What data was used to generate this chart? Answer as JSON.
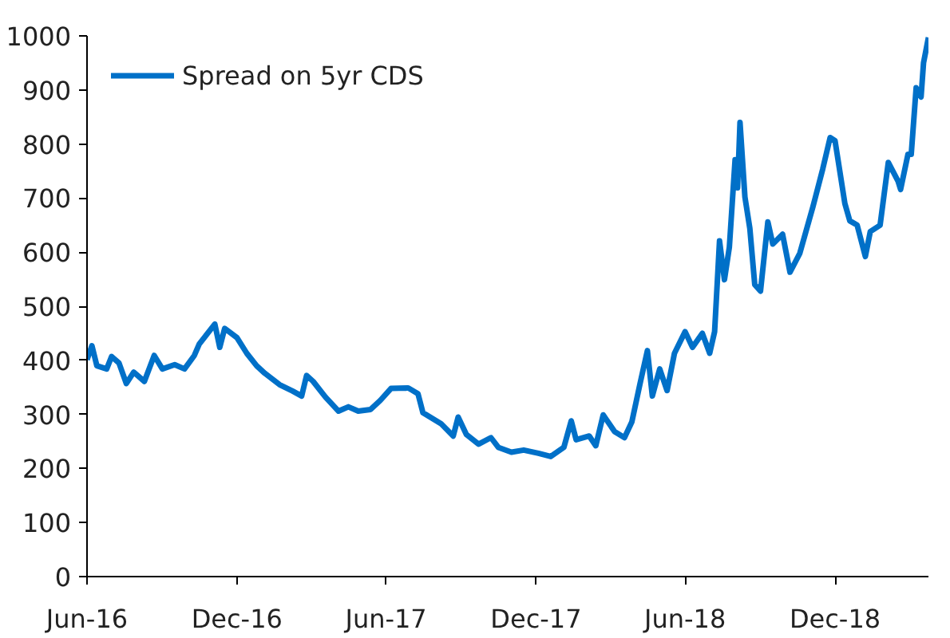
{
  "chart_data": {
    "type": "line",
    "legend": "top left",
    "grid": false,
    "line_style": "solid",
    "xlim": [
      "2016-06-01",
      "2019-03-25"
    ],
    "ylim": [
      0,
      1000
    ],
    "xticks": [
      {
        "value": "2016-06-01",
        "label": "Jun-16"
      },
      {
        "value": "2016-12-01",
        "label": "Dec-16"
      },
      {
        "value": "2017-06-01",
        "label": "Jun-17"
      },
      {
        "value": "2017-12-01",
        "label": "Dec-17"
      },
      {
        "value": "2018-06-01",
        "label": "Jun-18"
      },
      {
        "value": "2018-12-01",
        "label": "Dec-18"
      }
    ],
    "yticks": [
      0,
      100,
      200,
      300,
      400,
      500,
      600,
      700,
      800,
      900,
      1000
    ],
    "x": [
      "2016-06-01",
      "2016-06-07",
      "2016-06-13",
      "2016-06-25",
      "2016-07-01",
      "2016-07-10",
      "2016-07-19",
      "2016-07-28",
      "2016-08-10",
      "2016-08-22",
      "2016-09-01",
      "2016-09-16",
      "2016-09-28",
      "2016-10-10",
      "2016-10-16",
      "2016-11-04",
      "2016-11-10",
      "2016-11-16",
      "2016-12-01",
      "2016-12-13",
      "2016-12-25",
      "2017-01-04",
      "2017-01-22",
      "2017-02-07",
      "2017-02-18",
      "2017-02-24",
      "2017-03-04",
      "2017-03-19",
      "2017-04-04",
      "2017-04-16",
      "2017-04-28",
      "2017-05-13",
      "2017-05-25",
      "2017-06-07",
      "2017-06-28",
      "2017-07-10",
      "2017-07-16",
      "2017-08-07",
      "2017-08-22",
      "2017-08-28",
      "2017-09-07",
      "2017-09-22",
      "2017-10-07",
      "2017-10-16",
      "2017-11-01",
      "2017-11-16",
      "2017-12-04",
      "2017-12-19",
      "2018-01-04",
      "2018-01-13",
      "2018-01-19",
      "2018-02-04",
      "2018-02-12",
      "2018-02-21",
      "2018-03-07",
      "2018-03-19",
      "2018-03-28",
      "2018-04-07",
      "2018-04-16",
      "2018-04-22",
      "2018-05-01",
      "2018-05-10",
      "2018-05-19",
      "2018-06-01",
      "2018-06-10",
      "2018-06-22",
      "2018-07-01",
      "2018-07-07",
      "2018-07-13",
      "2018-07-19",
      "2018-07-25",
      "2018-08-01",
      "2018-08-04",
      "2018-08-07",
      "2018-08-13",
      "2018-08-19",
      "2018-08-25",
      "2018-09-01",
      "2018-09-10",
      "2018-09-16",
      "2018-09-28",
      "2018-10-07",
      "2018-10-19",
      "2018-11-04",
      "2018-11-16",
      "2018-11-25",
      "2018-12-01",
      "2018-12-13",
      "2018-12-19",
      "2018-12-28",
      "2019-01-07",
      "2019-01-13",
      "2019-01-25",
      "2019-02-04",
      "2019-02-16",
      "2019-02-19",
      "2019-02-28",
      "2019-03-04",
      "2019-03-10",
      "2019-03-16",
      "2019-03-19",
      "2019-03-25"
    ],
    "series": [
      {
        "name": "Spread on 5yr CDS",
        "color": "#0070c8",
        "values": [
          401,
          427,
          390,
          384,
          407,
          395,
          357,
          378,
          361,
          409,
          384,
          392,
          384,
          409,
          430,
          467,
          424,
          459,
          442,
          413,
          390,
          376,
          355,
          343,
          334,
          372,
          361,
          332,
          306,
          314,
          306,
          309,
          326,
          348,
          349,
          338,
          303,
          283,
          260,
          295,
          263,
          245,
          257,
          239,
          230,
          234,
          228,
          222,
          239,
          288,
          253,
          260,
          242,
          299,
          268,
          257,
          286,
          357,
          418,
          334,
          384,
          344,
          413,
          453,
          424,
          450,
          413,
          453,
          621,
          549,
          609,
          771,
          719,
          840,
          702,
          644,
          540,
          528,
          656,
          615,
          633,
          563,
          598,
          684,
          754,
          812,
          806,
          690,
          658,
          650,
          592,
          638,
          650,
          766,
          731,
          716,
          781,
          781,
          904,
          887,
          950,
          997
        ]
      }
    ]
  }
}
